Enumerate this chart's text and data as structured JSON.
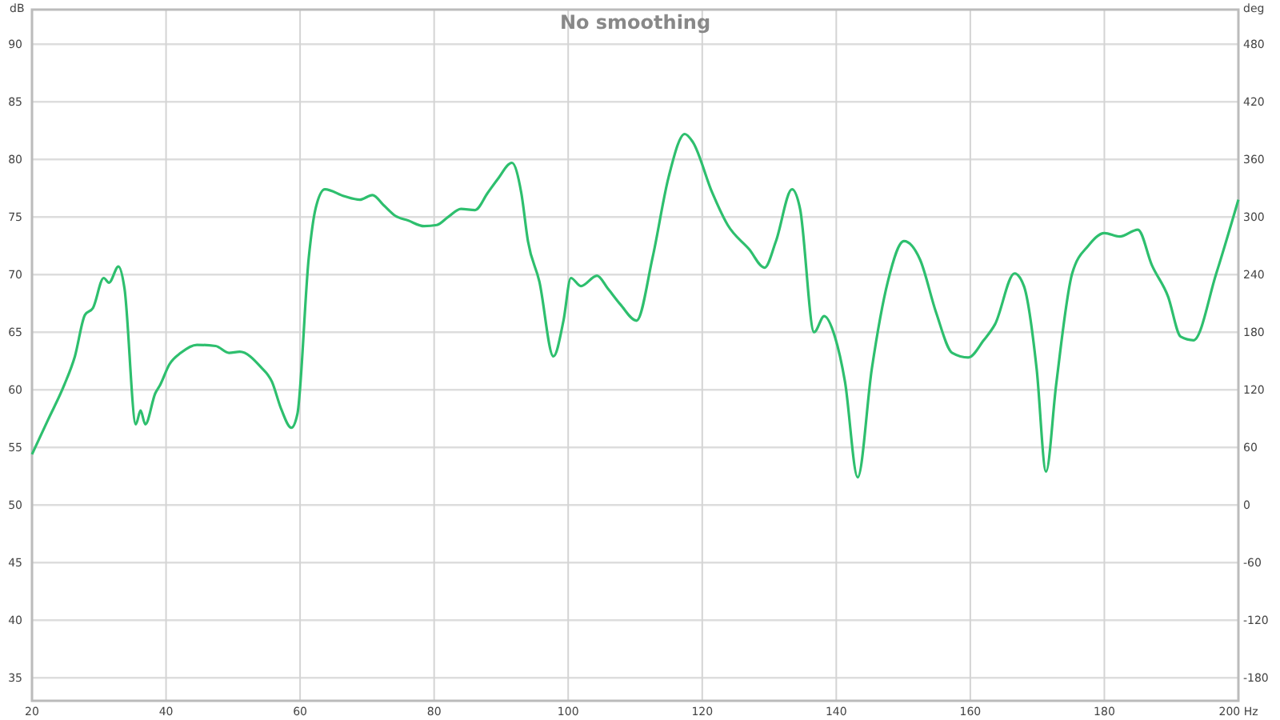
{
  "chart_data": {
    "type": "line",
    "title": "No smoothing",
    "ylabel": "dB",
    "y2label": "deg",
    "xlim": [
      20,
      200
    ],
    "xticks": [
      20,
      40,
      60,
      80,
      100,
      120,
      140,
      160,
      {
        "value": 200,
        "label": "200 Hz"
      },
      180
    ],
    "ylim": [
      33,
      93
    ],
    "yticks": [
      35,
      40,
      45,
      50,
      55,
      60,
      65,
      70,
      75,
      80,
      85,
      90
    ],
    "y2lim": [
      -204,
      516
    ],
    "y2ticks": [
      -180,
      -120,
      -60,
      0,
      60,
      120,
      180,
      240,
      300,
      360,
      420,
      480
    ],
    "grid": true,
    "line_style": "solid",
    "marker": "none",
    "series": [
      {
        "color": "#2ebf6e",
        "x": [
          20,
          22.4,
          24.8,
          26.4,
          27.9,
          29.1,
          30.7,
          31.5,
          32.9,
          33.8,
          35.5,
          36.2,
          36.9,
          38.4,
          39.1,
          40.5,
          42.2,
          44.6,
          47.4,
          49.4,
          51,
          54.1,
          55.8,
          57.2,
          58.7,
          59.6,
          61.3,
          62.3,
          63.7,
          66.6,
          68.9,
          70.8,
          72.5,
          74.2,
          76.1,
          78.5,
          80.4,
          82.1,
          84,
          86.1,
          88,
          89.5,
          91.6,
          93,
          94,
          95.7,
          97.8,
          99.3,
          100.4,
          101.9,
          104.3,
          105.9,
          107.8,
          110.2,
          112.6,
          115,
          117.4,
          118.6,
          121.5,
          123.8,
          127,
          129.3,
          131,
          133.4,
          134.6,
          136.7,
          138.2,
          139.8,
          141.3,
          143.2,
          145.3,
          147.7,
          150.1,
          152.5,
          154.9,
          157.3,
          159.7,
          162,
          163.7,
          166.6,
          168,
          169.9,
          171.3,
          172.8,
          175.2,
          177.6,
          180,
          182.3,
          185,
          187.1,
          189.5,
          191.4,
          193.3,
          196.7,
          200
        ],
        "values": [
          54.4,
          57.4,
          60.4,
          62.9,
          66.5,
          67.1,
          69.7,
          69.3,
          70.7,
          68.8,
          57,
          58.2,
          57,
          59.7,
          60.4,
          62.2,
          63.2,
          63.9,
          63.8,
          63.2,
          63.3,
          62,
          60.7,
          58.3,
          56.7,
          57.9,
          71.5,
          75.7,
          77.4,
          76.8,
          76.5,
          76.9,
          76,
          75.1,
          74.7,
          74.2,
          74.3,
          75,
          75.7,
          75.6,
          77.1,
          78.3,
          79.7,
          77.1,
          72.9,
          69.4,
          62.9,
          66,
          69.7,
          69,
          69.9,
          68.8,
          67.4,
          66,
          71.5,
          78.5,
          82.2,
          81.5,
          77.1,
          74.3,
          72.2,
          70.6,
          72.9,
          77.4,
          75.7,
          65,
          66.4,
          64.6,
          60.7,
          52.4,
          61.8,
          69.4,
          72.9,
          71.3,
          66.7,
          63.2,
          62.8,
          64.3,
          65.7,
          70.1,
          69,
          61.8,
          52.9,
          60.4,
          70.1,
          72.5,
          73.6,
          73.3,
          73.9,
          70.8,
          68.1,
          64.6,
          64.3,
          70.1,
          76.5
        ]
      }
    ]
  }
}
